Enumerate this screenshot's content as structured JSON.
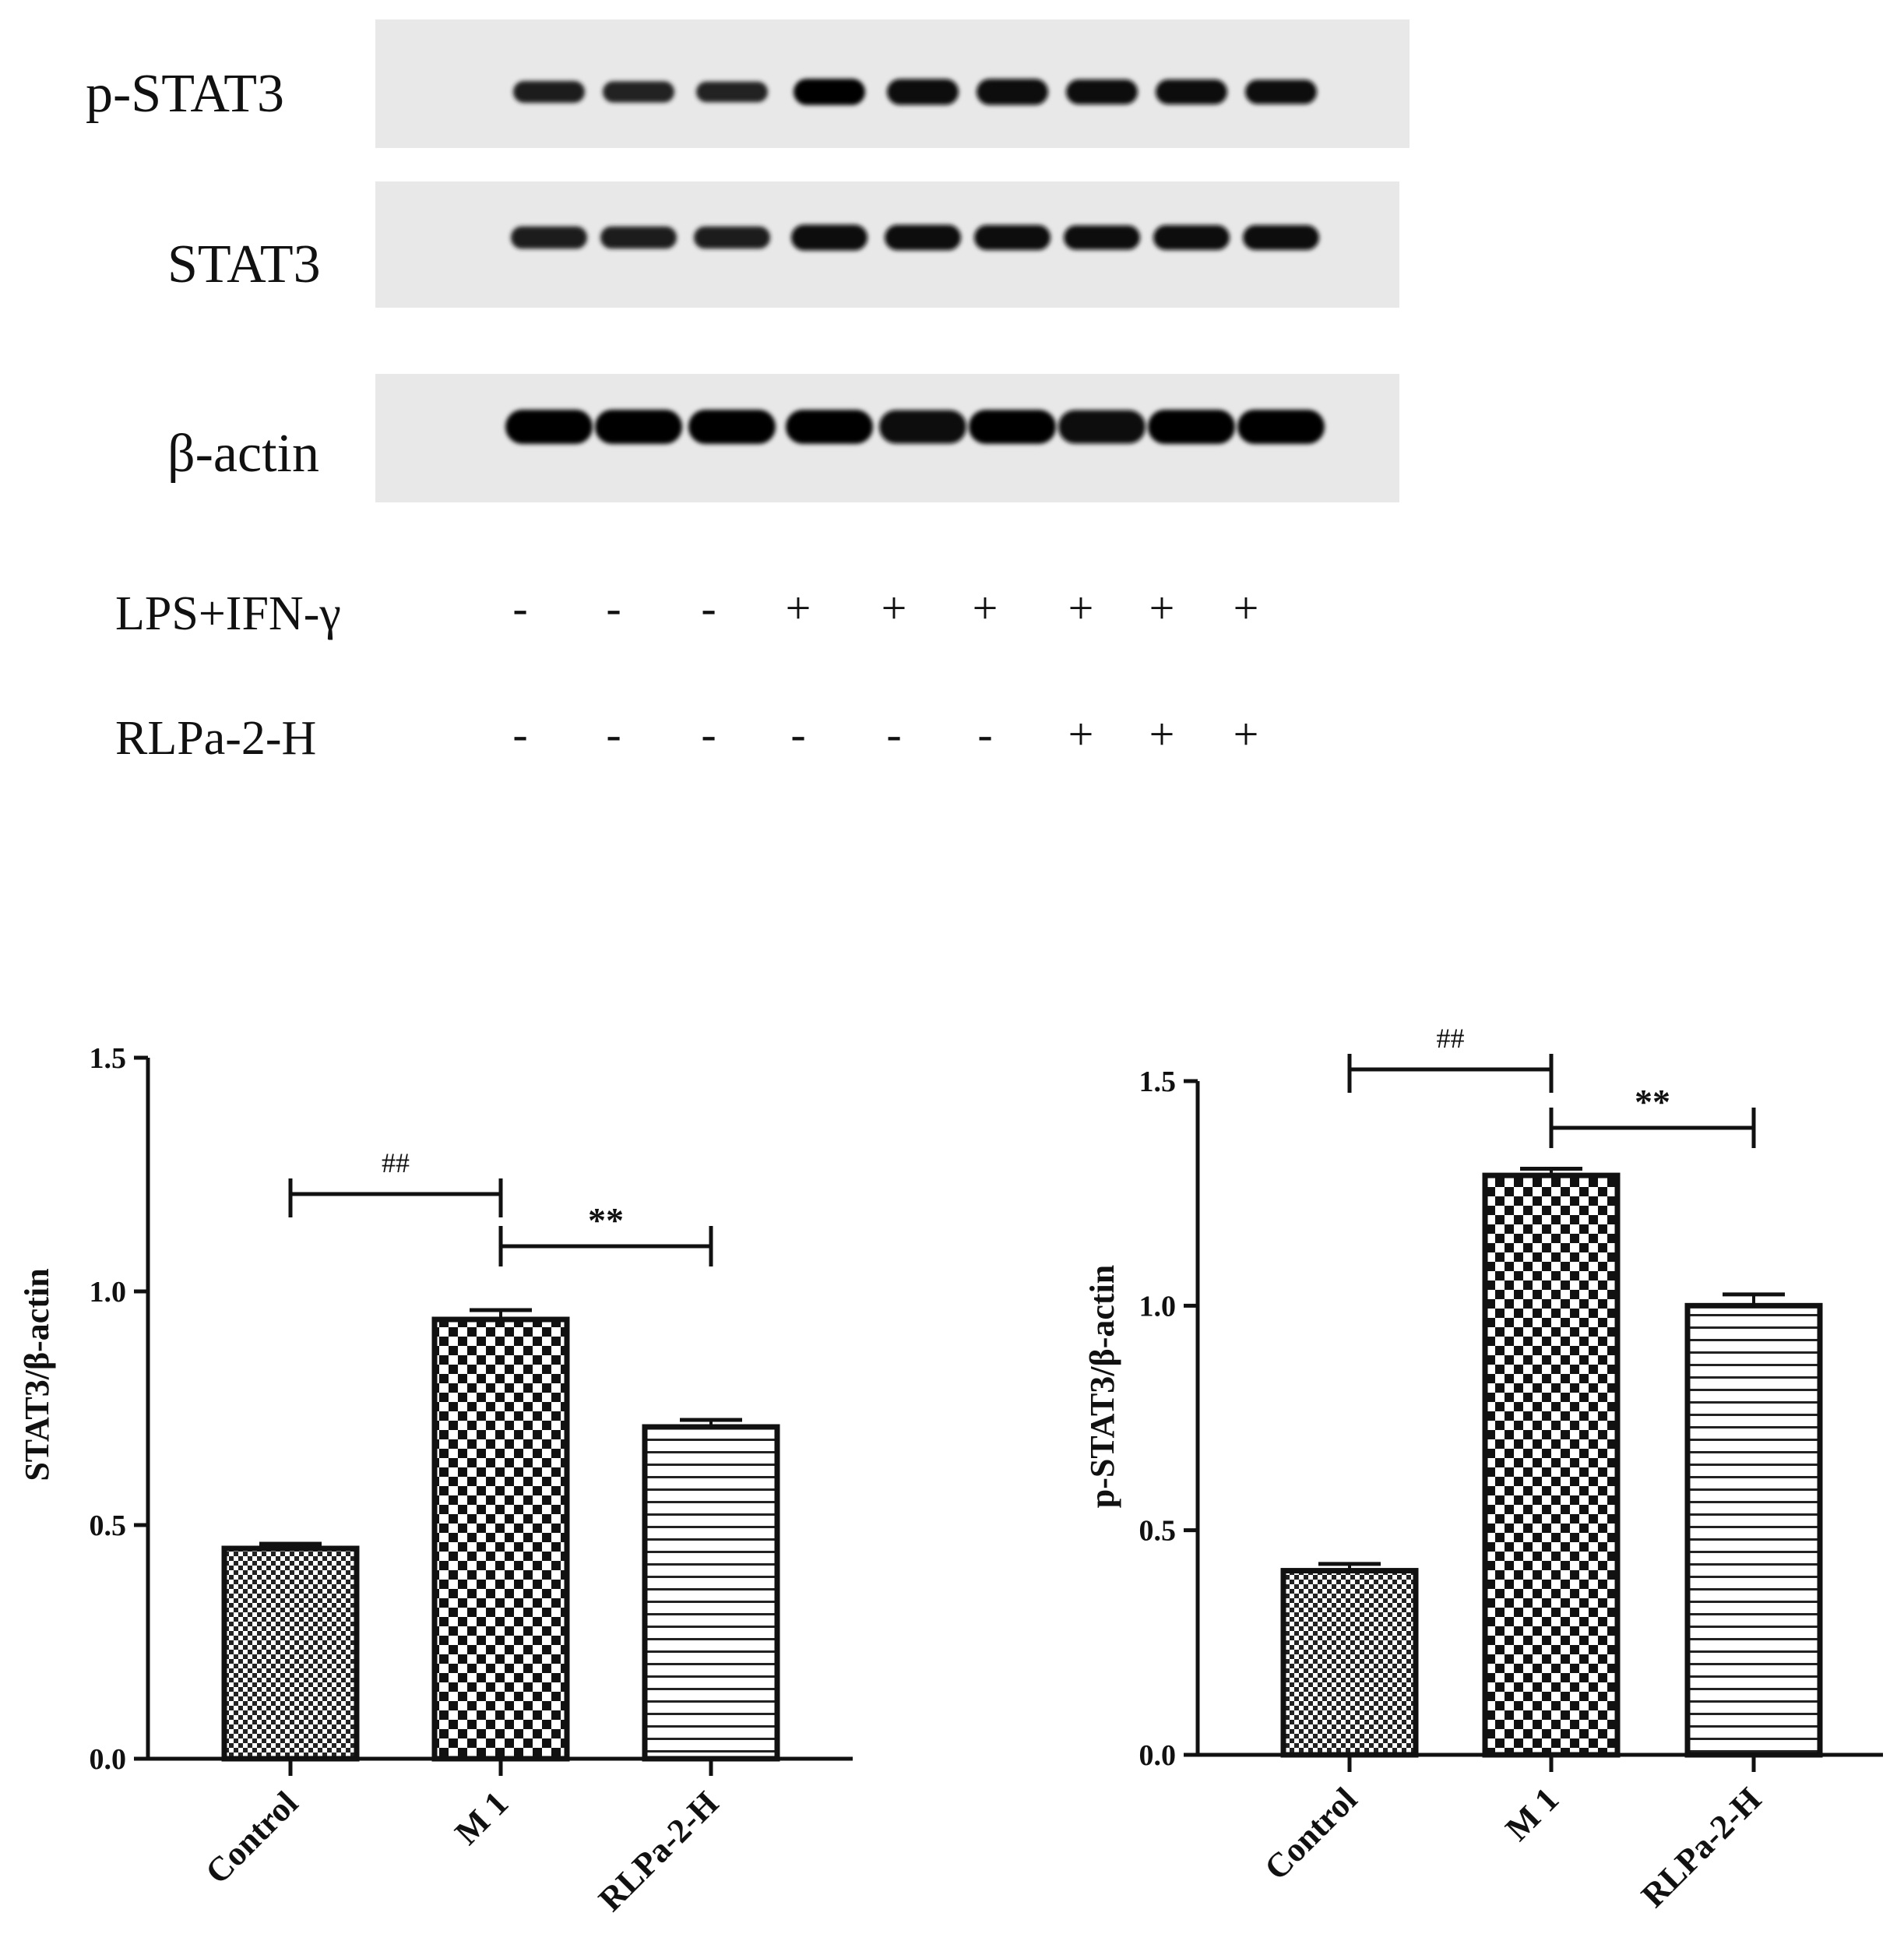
{
  "blot": {
    "rows": [
      {
        "label": "p-STAT3",
        "intensities": [
          0.55,
          0.5,
          0.45,
          0.98,
          0.95,
          0.97,
          0.85,
          0.85,
          0.8
        ]
      },
      {
        "label": "STAT3",
        "intensities": [
          0.62,
          0.6,
          0.6,
          0.95,
          0.9,
          0.88,
          0.8,
          0.85,
          0.85
        ]
      },
      {
        "label": "β-actin",
        "intensities": [
          1.0,
          1.0,
          1.0,
          0.98,
          0.95,
          0.98,
          0.95,
          1.0,
          1.0
        ]
      }
    ],
    "treatments": [
      {
        "label": "LPS+IFN-γ",
        "signs": [
          "-",
          "-",
          "-",
          "+",
          "+",
          "+",
          "+",
          "+",
          "+"
        ]
      },
      {
        "label": "RLPa-2-H",
        "signs": [
          "-",
          "-",
          "-",
          "-",
          "-",
          "-",
          "+",
          "+",
          "+"
        ]
      }
    ]
  },
  "chart_data": [
    {
      "type": "bar",
      "categories": [
        "Control",
        "M 1",
        "RLPa-2-H"
      ],
      "values": [
        0.45,
        0.94,
        0.71
      ],
      "errors": [
        0.01,
        0.02,
        0.015
      ],
      "ylabel": "STAT3/β-actin",
      "ylim": [
        0,
        1.5
      ],
      "yticks": [
        "0.0",
        "0.5",
        "1.0",
        "1.5"
      ],
      "patterns": [
        "fine-checker",
        "checker",
        "horizontal-lines"
      ],
      "significance": [
        {
          "from": "Control",
          "to": "M 1",
          "label": "##"
        },
        {
          "from": "M 1",
          "to": "RLPa-2-H",
          "label": "**"
        }
      ]
    },
    {
      "type": "bar",
      "categories": [
        "Control",
        "M 1",
        "RLPa-2-H"
      ],
      "values": [
        0.41,
        1.29,
        1.0
      ],
      "errors": [
        0.015,
        0.015,
        0.025
      ],
      "ylabel": "p-STAT3/β-actin",
      "ylim": [
        0,
        1.5
      ],
      "yticks": [
        "0.0",
        "0.5",
        "1.0",
        "1.5"
      ],
      "patterns": [
        "fine-checker",
        "checker",
        "horizontal-lines"
      ],
      "significance": [
        {
          "from": "Control",
          "to": "M 1",
          "label": "##"
        },
        {
          "from": "M 1",
          "to": "RLPa-2-H",
          "label": "**"
        }
      ]
    }
  ]
}
